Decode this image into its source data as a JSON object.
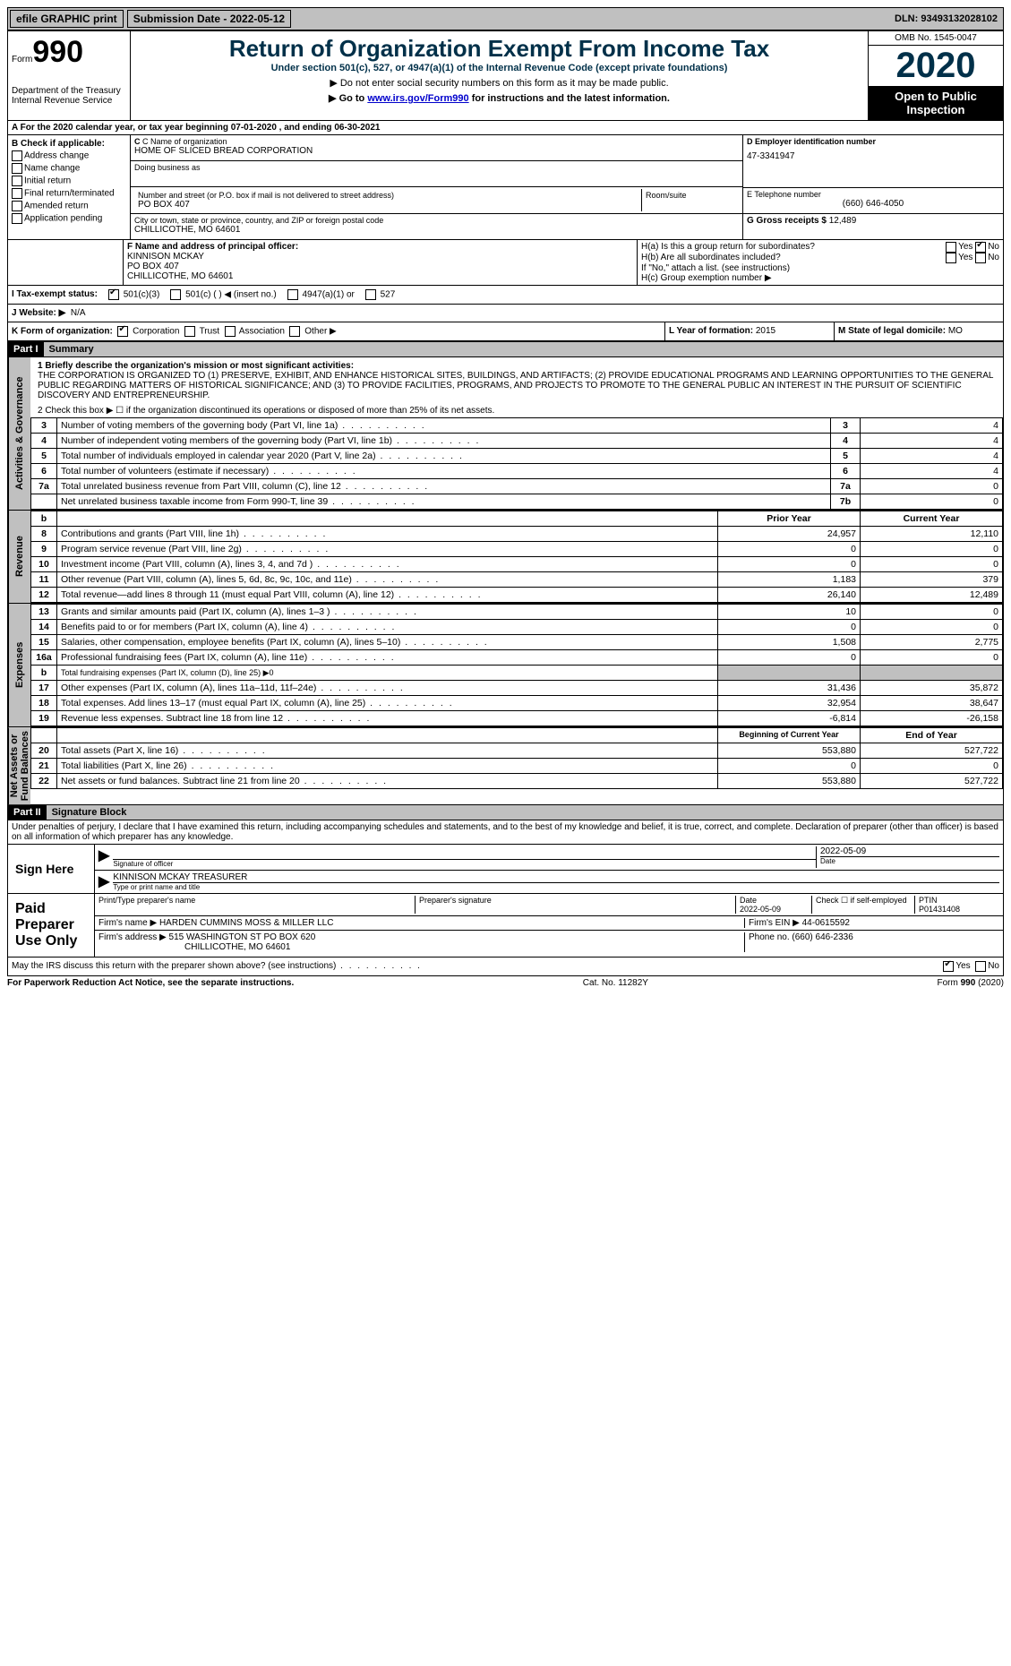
{
  "topbar": {
    "efile": "efile GRAPHIC print",
    "submission": "Submission Date - 2022-05-12",
    "dln": "DLN: 93493132028102"
  },
  "header": {
    "form_label": "Form",
    "form_num": "990",
    "dept": "Department of the Treasury\nInternal Revenue Service",
    "title": "Return of Organization Exempt From Income Tax",
    "subtitle": "Under section 501(c), 527, or 4947(a)(1) of the Internal Revenue Code (except private foundations)",
    "note1": "▶ Do not enter social security numbers on this form as it may be made public.",
    "note2_pre": "▶ Go to ",
    "note2_link": "www.irs.gov/Form990",
    "note2_post": " for instructions and the latest information.",
    "omb": "OMB No. 1545-0047",
    "year": "2020",
    "open": "Open to Public Inspection"
  },
  "rowA": "A For the 2020 calendar year, or tax year beginning 07-01-2020  , and ending 06-30-2021",
  "B": {
    "label": "B Check if applicable:",
    "items": [
      "Address change",
      "Name change",
      "Initial return",
      "Final return/terminated",
      "Amended return",
      "Application pending"
    ]
  },
  "C": {
    "name_lbl": "C Name of organization",
    "name": "HOME OF SLICED BREAD CORPORATION",
    "dba_lbl": "Doing business as",
    "dba": "",
    "street_lbl": "Number and street (or P.O. box if mail is not delivered to street address)",
    "street": "PO BOX 407",
    "room_lbl": "Room/suite",
    "city_lbl": "City or town, state or province, country, and ZIP or foreign postal code",
    "city": "CHILLICOTHE, MO  64601"
  },
  "D": {
    "lbl": "D Employer identification number",
    "val": "47-3341947"
  },
  "E": {
    "lbl": "E Telephone number",
    "val": "(660) 646-4050"
  },
  "G": {
    "lbl": "G Gross receipts $",
    "val": "12,489"
  },
  "F": {
    "lbl": "F  Name and address of principal officer:",
    "name": "KINNISON MCKAY",
    "addr1": "PO BOX 407",
    "addr2": "CHILLICOTHE, MO  64601"
  },
  "H": {
    "a": "H(a)  Is this a group return for subordinates?",
    "b": "H(b)  Are all subordinates included?",
    "b2": "If \"No,\" attach a list. (see instructions)",
    "c": "H(c)  Group exemption number ▶"
  },
  "I": {
    "lbl": "I   Tax-exempt status:",
    "opts": [
      "501(c)(3)",
      "501(c) (  ) ◀ (insert no.)",
      "4947(a)(1) or",
      "527"
    ]
  },
  "J": {
    "lbl": "J  Website: ▶",
    "val": "N/A"
  },
  "K": {
    "lbl": "K Form of organization:",
    "opts": [
      "Corporation",
      "Trust",
      "Association",
      "Other ▶"
    ]
  },
  "L": {
    "lbl": "L Year of formation:",
    "val": "2015"
  },
  "M": {
    "lbl": "M State of legal domicile:",
    "val": "MO"
  },
  "part1": {
    "num": "Part I",
    "title": "Summary"
  },
  "mission_lbl": "1   Briefly describe the organization's mission or most significant activities:",
  "mission": "THE CORPORATION IS ORGANIZED TO (1) PRESERVE, EXHIBIT, AND ENHANCE HISTORICAL SITES, BUILDINGS, AND ARTIFACTS; (2) PROVIDE EDUCATIONAL PROGRAMS AND LEARNING OPPORTUNITIES TO THE GENERAL PUBLIC REGARDING MATTERS OF HISTORICAL SIGNIFICANCE; AND (3) TO PROVIDE FACILITIES, PROGRAMS, AND PROJECTS TO PROMOTE TO THE GENERAL PUBLIC AN INTEREST IN THE PURSUIT OF SCIENTIFIC DISCOVERY AND ENTREPRENEURSHIP.",
  "line2": "2    Check this box ▶ ☐  if the organization discontinued its operations or disposed of more than 25% of its net assets.",
  "gov_rows": [
    {
      "n": "3",
      "t": "Number of voting members of the governing body (Part VI, line 1a)",
      "c": "3",
      "v": "4"
    },
    {
      "n": "4",
      "t": "Number of independent voting members of the governing body (Part VI, line 1b)",
      "c": "4",
      "v": "4"
    },
    {
      "n": "5",
      "t": "Total number of individuals employed in calendar year 2020 (Part V, line 2a)",
      "c": "5",
      "v": "4"
    },
    {
      "n": "6",
      "t": "Total number of volunteers (estimate if necessary)",
      "c": "6",
      "v": "4"
    },
    {
      "n": "7a",
      "t": "Total unrelated business revenue from Part VIII, column (C), line 12",
      "c": "7a",
      "v": "0"
    },
    {
      "n": "",
      "t": "Net unrelated business taxable income from Form 990-T, line 39",
      "c": "7b",
      "v": "0"
    }
  ],
  "col_hdr": {
    "b": "b",
    "prior": "Prior Year",
    "curr": "Current Year"
  },
  "rev_rows": [
    {
      "n": "8",
      "t": "Contributions and grants (Part VIII, line 1h)",
      "p": "24,957",
      "c": "12,110"
    },
    {
      "n": "9",
      "t": "Program service revenue (Part VIII, line 2g)",
      "p": "0",
      "c": "0"
    },
    {
      "n": "10",
      "t": "Investment income (Part VIII, column (A), lines 3, 4, and 7d )",
      "p": "0",
      "c": "0"
    },
    {
      "n": "11",
      "t": "Other revenue (Part VIII, column (A), lines 5, 6d, 8c, 9c, 10c, and 11e)",
      "p": "1,183",
      "c": "379"
    },
    {
      "n": "12",
      "t": "Total revenue—add lines 8 through 11 (must equal Part VIII, column (A), line 12)",
      "p": "26,140",
      "c": "12,489"
    }
  ],
  "exp_rows": [
    {
      "n": "13",
      "t": "Grants and similar amounts paid (Part IX, column (A), lines 1–3 )",
      "p": "10",
      "c": "0"
    },
    {
      "n": "14",
      "t": "Benefits paid to or for members (Part IX, column (A), line 4)",
      "p": "0",
      "c": "0"
    },
    {
      "n": "15",
      "t": "Salaries, other compensation, employee benefits (Part IX, column (A), lines 5–10)",
      "p": "1,508",
      "c": "2,775"
    },
    {
      "n": "16a",
      "t": "Professional fundraising fees (Part IX, column (A), line 11e)",
      "p": "0",
      "c": "0"
    },
    {
      "n": "b",
      "t": "Total fundraising expenses (Part IX, column (D), line 25) ▶0",
      "p": "",
      "c": "",
      "gray": true
    },
    {
      "n": "17",
      "t": "Other expenses (Part IX, column (A), lines 11a–11d, 11f–24e)",
      "p": "31,436",
      "c": "35,872"
    },
    {
      "n": "18",
      "t": "Total expenses. Add lines 13–17 (must equal Part IX, column (A), line 25)",
      "p": "32,954",
      "c": "38,647"
    },
    {
      "n": "19",
      "t": "Revenue less expenses. Subtract line 18 from line 12",
      "p": "-6,814",
      "c": "-26,158"
    }
  ],
  "na_hdr": {
    "b": "Beginning of Current Year",
    "e": "End of Year"
  },
  "na_rows": [
    {
      "n": "20",
      "t": "Total assets (Part X, line 16)",
      "p": "553,880",
      "c": "527,722"
    },
    {
      "n": "21",
      "t": "Total liabilities (Part X, line 26)",
      "p": "0",
      "c": "0"
    },
    {
      "n": "22",
      "t": "Net assets or fund balances. Subtract line 21 from line 20",
      "p": "553,880",
      "c": "527,722"
    }
  ],
  "vtabs": {
    "gov": "Activities & Governance",
    "rev": "Revenue",
    "exp": "Expenses",
    "na": "Net Assets or\nFund Balances"
  },
  "part2": {
    "num": "Part II",
    "title": "Signature Block"
  },
  "perjury": "Under penalties of perjury, I declare that I have examined this return, including accompanying schedules and statements, and to the best of my knowledge and belief, it is true, correct, and complete. Declaration of preparer (other than officer) is based on all information of which preparer has any knowledge.",
  "sign": {
    "here": "Sign Here",
    "sig_lbl": "Signature of officer",
    "date": "2022-05-09",
    "date_lbl": "Date",
    "name": "KINNISON MCKAY TREASURER",
    "name_lbl": "Type or print name and title"
  },
  "prep": {
    "label": "Paid Preparer Use Only",
    "h1": "Print/Type preparer's name",
    "h2": "Preparer's signature",
    "h3": "Date",
    "h4": "Check ☐  if self-employed",
    "h5": "PTIN",
    "date": "2022-05-09",
    "ptin": "P01431408",
    "firm_lbl": "Firm's name    ▶",
    "firm": "HARDEN CUMMINS MOSS & MILLER LLC",
    "ein_lbl": "Firm's EIN ▶",
    "ein": "44-0615592",
    "addr_lbl": "Firm's address ▶",
    "addr": "515 WASHINGTON ST PO BOX 620",
    "addr2": "CHILLICOTHE, MO  64601",
    "phone_lbl": "Phone no.",
    "phone": "(660) 646-2336"
  },
  "discuss": "May the IRS discuss this return with the preparer shown above? (see instructions)",
  "yes": "Yes",
  "no": "No",
  "footer": {
    "l": "For Paperwork Reduction Act Notice, see the separate instructions.",
    "m": "Cat. No. 11282Y",
    "r": "Form 990 (2020)"
  }
}
